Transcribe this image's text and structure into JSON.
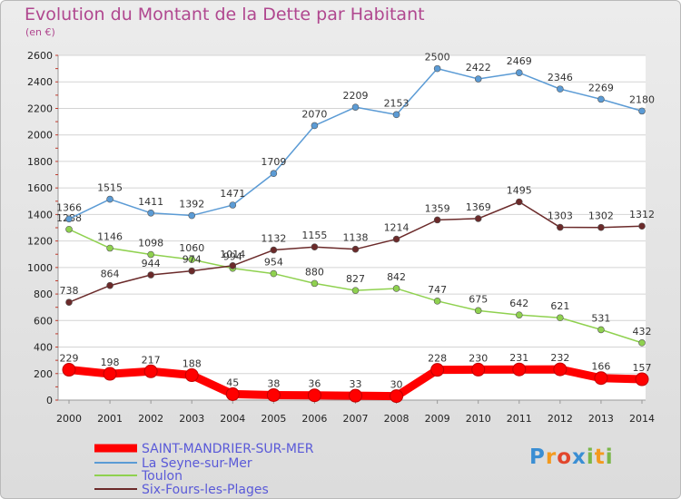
{
  "title": "Evolution du Montant de la Dette par Habitant",
  "unit": "(en €)",
  "logo": {
    "text": "Proxiti",
    "colors": [
      "#3a8ed3",
      "#f39a1e",
      "#e2462c",
      "#3a8ed3",
      "#7ab648",
      "#f39a1e",
      "#7ab648"
    ]
  },
  "chart_data": {
    "type": "line",
    "title": "Evolution du Montant de la Dette par Habitant",
    "ylabel": "(en €)",
    "xlabel": "",
    "categories": [
      "2000",
      "2001",
      "2002",
      "2003",
      "2004",
      "2005",
      "2006",
      "2007",
      "2008",
      "2009",
      "2010",
      "2011",
      "2012",
      "2013",
      "2014"
    ],
    "ylim": [
      0,
      2600
    ],
    "yticks": [
      0,
      200,
      400,
      600,
      800,
      1000,
      1200,
      1400,
      1600,
      1800,
      2000,
      2200,
      2400,
      2600
    ],
    "grid": "horizontal",
    "legend_position": "bottom-left",
    "series": [
      {
        "name": "SAINT-MANDRIER-SUR-MER",
        "color": "#ff0000",
        "values": [
          229,
          198,
          217,
          188,
          45,
          38,
          36,
          33,
          30,
          228,
          230,
          231,
          232,
          166,
          157
        ]
      },
      {
        "name": "La Seyne-sur-Mer",
        "color": "#5b9bd5",
        "values": [
          1366,
          1515,
          1411,
          1392,
          1471,
          1709,
          2070,
          2209,
          2153,
          2500,
          2422,
          2469,
          2346,
          2269,
          2180
        ]
      },
      {
        "name": "Toulon",
        "color": "#8fd14f",
        "values": [
          1288,
          1146,
          1098,
          1060,
          994,
          954,
          880,
          827,
          842,
          747,
          675,
          642,
          621,
          531,
          432
        ]
      },
      {
        "name": "Six-Fours-les-Plages",
        "color": "#6b2a2a",
        "values": [
          738,
          864,
          944,
          974,
          1014,
          1132,
          1155,
          1138,
          1214,
          1359,
          1369,
          1495,
          1303,
          1302,
          1312
        ]
      }
    ]
  }
}
